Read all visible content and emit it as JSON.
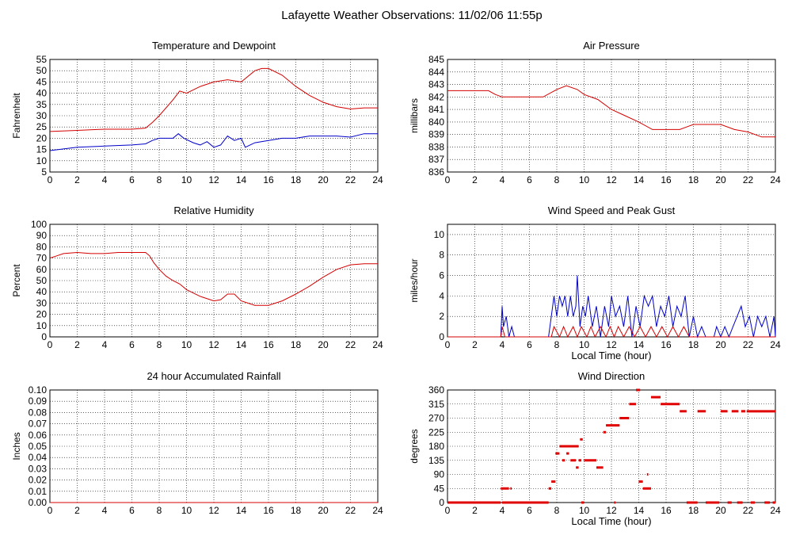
{
  "page_title": "Lafayette Weather Observations: 11/02/06 11:55p",
  "chart_data": [
    {
      "id": "temp",
      "type": "line",
      "title": "Temperature and Dewpoint",
      "ylabel": "Fahrenheit",
      "xlabel": "",
      "xlim": [
        0,
        24
      ],
      "ylim": [
        5,
        55
      ],
      "x_ticks": [
        0,
        2,
        4,
        6,
        8,
        10,
        12,
        14,
        16,
        18,
        20,
        22,
        24
      ],
      "y_ticks": [
        5,
        10,
        15,
        20,
        25,
        30,
        35,
        40,
        45,
        50,
        55
      ],
      "series": [
        {
          "color": "#d40000",
          "x": [
            0,
            2,
            4,
            6,
            7,
            7.5,
            8,
            9,
            9.5,
            10,
            11,
            12,
            13,
            14,
            15,
            15.5,
            16,
            17,
            18,
            19,
            20,
            21,
            22,
            23,
            24
          ],
          "y": [
            23,
            23.5,
            24,
            24,
            24.5,
            27,
            30,
            37,
            41,
            40,
            43,
            45,
            46,
            45,
            50,
            51,
            51,
            48,
            43,
            39,
            36,
            34,
            33,
            33.5,
            33.5
          ]
        },
        {
          "color": "#0000c8",
          "x": [
            0,
            2,
            4,
            6,
            7,
            7.5,
            8,
            9,
            9.4,
            9.8,
            10.5,
            11,
            11.5,
            12,
            12.5,
            13,
            13.5,
            14,
            14.3,
            15,
            16,
            17,
            18,
            19,
            20,
            21,
            22,
            23,
            24
          ],
          "y": [
            14.5,
            16,
            16.5,
            17,
            17.5,
            19,
            20,
            20,
            22,
            20,
            18,
            17,
            18.5,
            16,
            17,
            21,
            19,
            20,
            16,
            18,
            19,
            20,
            20,
            21,
            21,
            21,
            20.5,
            22,
            22
          ]
        }
      ]
    },
    {
      "id": "press",
      "type": "line",
      "title": "Air Pressure",
      "ylabel": "millibars",
      "xlabel": "",
      "xlim": [
        0,
        24
      ],
      "ylim": [
        836,
        845
      ],
      "x_ticks": [
        0,
        2,
        4,
        6,
        8,
        10,
        12,
        14,
        16,
        18,
        20,
        22,
        24
      ],
      "y_ticks": [
        836,
        837,
        838,
        839,
        840,
        841,
        842,
        843,
        844,
        845
      ],
      "series": [
        {
          "color": "#d40000",
          "x": [
            0,
            2,
            3,
            3.5,
            4,
            6,
            7,
            8,
            8.7,
            9.5,
            10,
            11,
            12,
            13,
            14,
            15,
            16,
            17,
            17.5,
            18,
            19,
            20,
            21,
            22,
            23,
            24
          ],
          "y": [
            842.5,
            842.5,
            842.5,
            842.2,
            842,
            842,
            842,
            842.6,
            842.9,
            842.6,
            842.2,
            841.8,
            841,
            840.5,
            840,
            839.4,
            839.4,
            839.4,
            839.6,
            839.8,
            839.8,
            839.8,
            839.4,
            839.2,
            838.8,
            838.8
          ]
        }
      ]
    },
    {
      "id": "rh",
      "type": "line",
      "title": "Relative Humidity",
      "ylabel": "Percent",
      "xlabel": "",
      "xlim": [
        0,
        24
      ],
      "ylim": [
        0,
        100
      ],
      "x_ticks": [
        0,
        2,
        4,
        6,
        8,
        10,
        12,
        14,
        16,
        18,
        20,
        22,
        24
      ],
      "y_ticks": [
        0,
        10,
        20,
        30,
        40,
        50,
        60,
        70,
        80,
        90,
        100
      ],
      "series": [
        {
          "color": "#d40000",
          "x": [
            0,
            0.5,
            1,
            2,
            3,
            4,
            5,
            6,
            7,
            7.3,
            7.6,
            8,
            8.5,
            9,
            9.5,
            10,
            11,
            12,
            12.5,
            13,
            13.5,
            14,
            15,
            16,
            17,
            18,
            19,
            20,
            21,
            22,
            23,
            24
          ],
          "y": [
            70,
            72,
            74,
            75,
            74,
            74,
            75,
            75,
            75,
            72,
            66,
            60,
            54,
            50,
            47,
            42,
            36,
            32,
            33,
            38,
            38,
            32,
            28,
            28,
            32,
            38,
            45,
            53,
            60,
            64,
            65,
            65
          ]
        }
      ]
    },
    {
      "id": "wind",
      "type": "line",
      "title": "Wind Speed and Peak Gust",
      "ylabel": "miles/hour",
      "xlabel": "Local Time (hour)",
      "xlim": [
        0,
        24
      ],
      "ylim": [
        0,
        11
      ],
      "x_ticks": [
        0,
        2,
        4,
        6,
        8,
        10,
        12,
        14,
        16,
        18,
        20,
        22,
        24
      ],
      "y_ticks": [
        0,
        2,
        4,
        6,
        8,
        10
      ],
      "series": [
        {
          "color": "#0000c8",
          "x": [
            0,
            3.9,
            4.0,
            4.1,
            4.3,
            4.5,
            4.7,
            4.9,
            7.4,
            7.6,
            7.8,
            8.0,
            8.2,
            8.4,
            8.6,
            8.8,
            9.0,
            9.2,
            9.4,
            9.5,
            9.7,
            9.9,
            10.1,
            10.3,
            10.6,
            10.9,
            11.2,
            11.5,
            11.8,
            12.0,
            12.3,
            12.6,
            12.9,
            13.2,
            13.5,
            13.8,
            14.1,
            14.4,
            14.7,
            15.0,
            15.3,
            15.6,
            15.9,
            16.2,
            16.5,
            16.8,
            17.1,
            17.4,
            17.7,
            18.0,
            18.3,
            18.6,
            18.9,
            19.2,
            19.5,
            19.7,
            20.0,
            20.3,
            20.6,
            20.9,
            21.2,
            21.5,
            21.8,
            22.1,
            22.4,
            22.7,
            23.0,
            23.3,
            23.6,
            23.9,
            24.0
          ],
          "y": [
            0,
            0,
            3,
            1,
            2,
            0,
            1,
            0,
            0,
            2,
            4,
            2,
            4,
            3,
            4,
            2,
            4,
            2,
            3,
            6,
            1,
            3,
            2,
            4,
            1,
            3,
            0,
            3,
            1,
            4,
            2,
            3,
            1,
            4,
            0,
            3,
            1,
            4,
            3,
            4,
            1,
            3,
            2,
            4,
            1,
            3,
            2,
            4,
            0,
            2,
            0,
            1,
            0,
            0,
            0,
            1,
            0,
            1,
            0,
            1,
            2,
            3,
            1,
            2,
            0,
            2,
            1,
            2,
            0,
            2,
            0
          ]
        },
        {
          "color": "#d40000",
          "x": [
            0,
            3.9,
            4.0,
            4.2,
            7.6,
            7.8,
            8.2,
            8.5,
            8.8,
            9.2,
            9.5,
            9.8,
            10.2,
            10.5,
            10.8,
            11.2,
            11.6,
            11.9,
            12.2,
            12.5,
            12.9,
            13.3,
            13.7,
            14.1,
            14.5,
            14.9,
            15.3,
            15.7,
            16.1,
            16.5,
            16.9,
            17.3,
            17.7,
            18.0,
            24.0
          ],
          "y": [
            0,
            0,
            1,
            0,
            0,
            1,
            0,
            1,
            0,
            1,
            0,
            1,
            0,
            1,
            0,
            1,
            0,
            1,
            0,
            1,
            0,
            1,
            0,
            1,
            0,
            1,
            0,
            1,
            0,
            1,
            0,
            1,
            0,
            0,
            0
          ]
        }
      ]
    },
    {
      "id": "rain",
      "type": "line",
      "title": "24 hour Accumulated Rainfall",
      "ylabel": "Inches",
      "xlabel": "",
      "xlim": [
        0,
        24
      ],
      "ylim": [
        0,
        0.1
      ],
      "x_ticks": [
        0,
        2,
        4,
        6,
        8,
        10,
        12,
        14,
        16,
        18,
        20,
        22,
        24
      ],
      "y_ticks": [
        "0.00",
        "0.01",
        "0.02",
        "0.03",
        "0.04",
        "0.05",
        "0.06",
        "0.07",
        "0.08",
        "0.09",
        "0.10"
      ],
      "series": [
        {
          "color": "#d40000",
          "x": [
            0,
            24
          ],
          "y": [
            0,
            0
          ]
        }
      ]
    },
    {
      "id": "dir",
      "type": "scatter",
      "title": "Wind Direction",
      "ylabel": "degrees",
      "xlabel": "Local Time (hour)",
      "xlim": [
        0,
        24
      ],
      "ylim": [
        0,
        360
      ],
      "x_ticks": [
        0,
        2,
        4,
        6,
        8,
        10,
        12,
        14,
        16,
        18,
        20,
        22,
        24
      ],
      "y_ticks": [
        0,
        45,
        90,
        135,
        180,
        225,
        270,
        315,
        360
      ],
      "segments": [
        {
          "x1": 0,
          "x2": 3.9,
          "y": 0
        },
        {
          "x1": 3.9,
          "x2": 4.5,
          "y": 45
        },
        {
          "x1": 4.6,
          "x2": 4.7,
          "y": 45
        },
        {
          "x1": 4.0,
          "x2": 7.4,
          "y": 0
        },
        {
          "x1": 7.4,
          "x2": 7.6,
          "y": 45
        },
        {
          "x1": 7.6,
          "x2": 7.9,
          "y": 67
        },
        {
          "x1": 7.9,
          "x2": 8.2,
          "y": 157
        },
        {
          "x1": 8.2,
          "x2": 9.6,
          "y": 180
        },
        {
          "x1": 8.4,
          "x2": 8.6,
          "y": 135
        },
        {
          "x1": 8.7,
          "x2": 8.9,
          "y": 157
        },
        {
          "x1": 9.0,
          "x2": 9.4,
          "y": 135
        },
        {
          "x1": 9.4,
          "x2": 9.6,
          "y": 112
        },
        {
          "x1": 9.6,
          "x2": 9.8,
          "y": 135
        },
        {
          "x1": 9.7,
          "x2": 9.9,
          "y": 202
        },
        {
          "x1": 9.8,
          "x2": 10.0,
          "y": 0
        },
        {
          "x1": 10.0,
          "x2": 10.9,
          "y": 135
        },
        {
          "x1": 10.9,
          "x2": 11.4,
          "y": 112
        },
        {
          "x1": 11.4,
          "x2": 11.6,
          "y": 225
        },
        {
          "x1": 11.6,
          "x2": 12.6,
          "y": 247
        },
        {
          "x1": 12.2,
          "x2": 12.3,
          "y": 0
        },
        {
          "x1": 12.6,
          "x2": 13.3,
          "y": 270
        },
        {
          "x1": 13.3,
          "x2": 13.8,
          "y": 315
        },
        {
          "x1": 13.8,
          "x2": 14.1,
          "y": 360
        },
        {
          "x1": 14.0,
          "x2": 14.3,
          "y": 67
        },
        {
          "x1": 14.3,
          "x2": 14.9,
          "y": 45
        },
        {
          "x1": 14.6,
          "x2": 14.7,
          "y": 90
        },
        {
          "x1": 14.9,
          "x2": 15.6,
          "y": 337
        },
        {
          "x1": 15.6,
          "x2": 17.0,
          "y": 315
        },
        {
          "x1": 17.0,
          "x2": 17.5,
          "y": 292
        },
        {
          "x1": 17.5,
          "x2": 18.3,
          "y": 0
        },
        {
          "x1": 18.3,
          "x2": 18.9,
          "y": 292
        },
        {
          "x1": 18.9,
          "x2": 19.9,
          "y": 0
        },
        {
          "x1": 20.0,
          "x2": 20.5,
          "y": 292
        },
        {
          "x1": 20.5,
          "x2": 20.8,
          "y": 0
        },
        {
          "x1": 20.8,
          "x2": 21.3,
          "y": 292
        },
        {
          "x1": 21.2,
          "x2": 21.6,
          "y": 0
        },
        {
          "x1": 21.5,
          "x2": 21.8,
          "y": 292
        },
        {
          "x1": 21.9,
          "x2": 24.0,
          "y": 292
        },
        {
          "x1": 22.2,
          "x2": 22.5,
          "y": 0
        },
        {
          "x1": 23.2,
          "x2": 23.6,
          "y": 0
        },
        {
          "x1": 23.8,
          "x2": 24.0,
          "y": 0
        }
      ]
    }
  ]
}
